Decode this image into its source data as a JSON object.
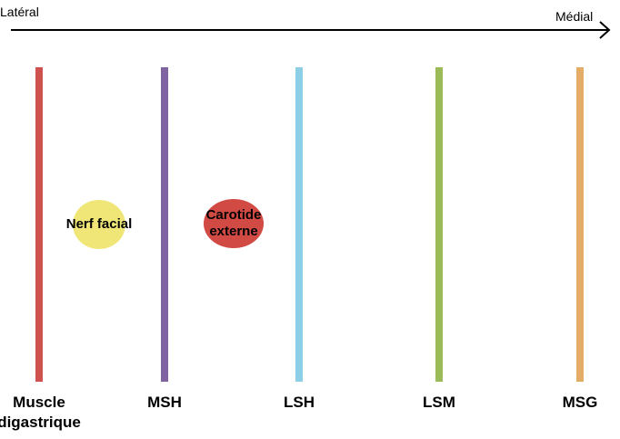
{
  "axis": {
    "left_label": "Latéral",
    "right_label": "Médial"
  },
  "bars": [
    {
      "label": "Muscle digastrique",
      "color": "#d0524f"
    },
    {
      "label": "MSH",
      "color": "#8064a2"
    },
    {
      "label": "LSH",
      "color": "#8ecfe8"
    },
    {
      "label": "LSM",
      "color": "#9bbb59"
    },
    {
      "label": "MSG",
      "color": "#e3ac67"
    }
  ],
  "structures": [
    {
      "label": "Nerf facial",
      "color": "#f0e678"
    },
    {
      "label": "Carotide externe",
      "color": "#d14a44"
    }
  ]
}
